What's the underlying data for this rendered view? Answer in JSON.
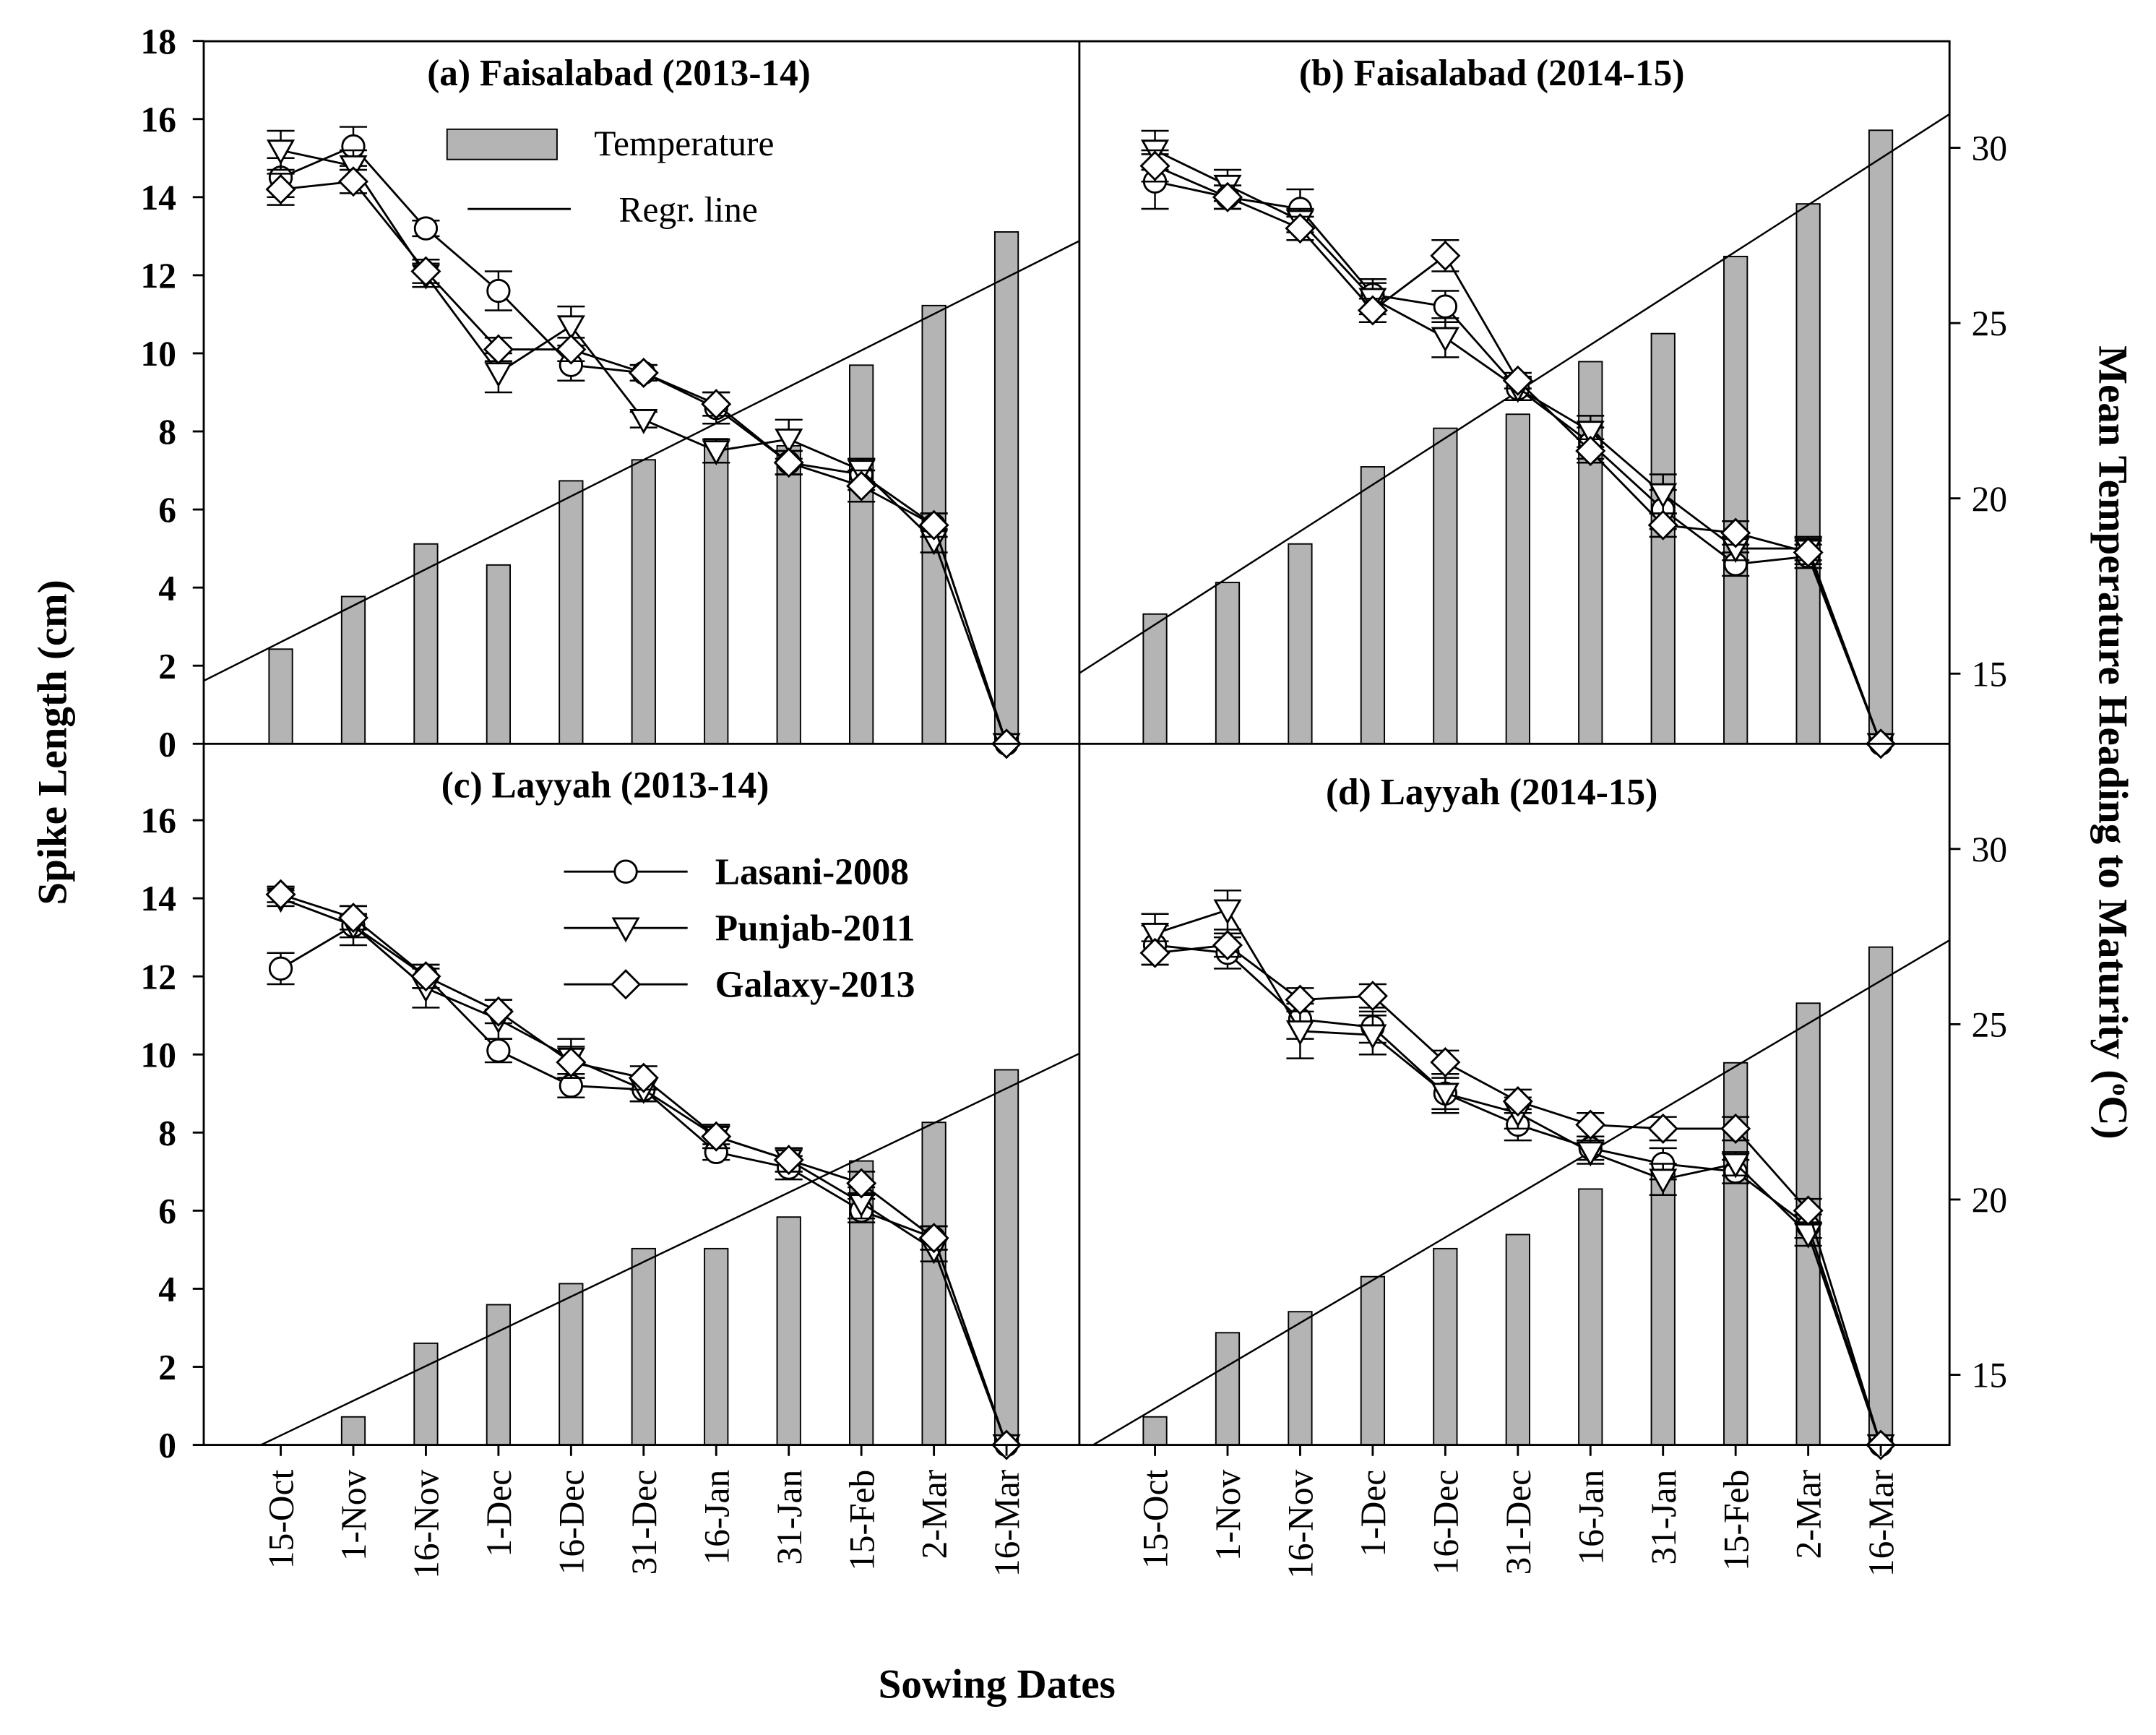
{
  "chart_data": {
    "type": "bar+line",
    "xlabel": "Sowing Dates",
    "ylabel": "Spike Length (cm)",
    "y2label": "Mean Temperature Heading to Maturity (",
    "y2label_unit": "C)",
    "y2label_sup": "o",
    "ylim": [
      0,
      18
    ],
    "y2lim": [
      13,
      33
    ],
    "categories": [
      "15-Oct",
      "1-Nov",
      "16-Nov",
      "1-Dec",
      "16-Dec",
      "31-Dec",
      "16-Jan",
      "31-Jan",
      "15-Feb",
      "2-Mar",
      "16-Mar"
    ],
    "legend": {
      "temperature": "Temperature",
      "regression": "Regr. line",
      "series": [
        "Lasani-2008",
        "Punjab-2011",
        "Galaxy-2013"
      ]
    },
    "panels": [
      {
        "title": "(a) Faisalabad (2013-14)",
        "temperature": [
          15.7,
          17.2,
          18.7,
          18.1,
          20.5,
          21.1,
          21.7,
          21.5,
          23.8,
          25.5,
          27.6
        ],
        "regression": {
          "intercept": 15.9,
          "slope": 1.04
        },
        "series": [
          {
            "name": "Lasani-2008",
            "values": [
              14.5,
              15.3,
              13.2,
              11.6,
              9.7,
              9.5,
              8.6,
              7.2,
              6.9,
              5.6,
              0
            ],
            "error": [
              0.5,
              0.5,
              0.2,
              0.5,
              0.4,
              0.2,
              0.4,
              0.3,
              0.4,
              0.3,
              0
            ]
          },
          {
            "name": "Punjab-2011",
            "values": [
              15.2,
              14.8,
              12.0,
              9.5,
              10.7,
              8.3,
              7.5,
              7.8,
              7.0,
              5.2,
              0
            ],
            "error": [
              0.5,
              0.4,
              0.3,
              0.5,
              0.5,
              0.2,
              0.3,
              0.5,
              0.3,
              0.3,
              0
            ]
          },
          {
            "name": "Galaxy-2013",
            "values": [
              14.2,
              14.4,
              12.1,
              10.1,
              10.1,
              9.5,
              8.7,
              7.2,
              6.6,
              5.6,
              0
            ],
            "error": [
              0.4,
              0.3,
              0.3,
              0.3,
              0.3,
              0.2,
              0.3,
              0.3,
              0.4,
              0.3,
              0
            ]
          }
        ]
      },
      {
        "title": "(b) Faisalabad (2014-15)",
        "temperature": [
          16.7,
          17.6,
          18.7,
          20.9,
          22.0,
          22.4,
          23.9,
          24.7,
          26.9,
          28.4,
          30.5
        ],
        "regression": {
          "intercept": 16.4,
          "slope": 1.33
        },
        "series": [
          {
            "name": "Lasani-2008",
            "values": [
              14.4,
              14.0,
              13.7,
              11.5,
              11.2,
              9.1,
              7.7,
              6.0,
              4.6,
              4.8,
              0
            ],
            "error": [
              0.7,
              0.3,
              0.5,
              0.4,
              0.4,
              0.3,
              0.4,
              0.5,
              0.3,
              0.3,
              0
            ]
          },
          {
            "name": "Punjab-2011",
            "values": [
              15.2,
              14.3,
              13.4,
              11.4,
              10.4,
              9.1,
              8.0,
              6.4,
              5.0,
              5.0,
              0
            ],
            "error": [
              0.5,
              0.4,
              0.3,
              0.4,
              0.5,
              0.3,
              0.4,
              0.5,
              0.3,
              0.3,
              0
            ]
          },
          {
            "name": "Galaxy-2013",
            "values": [
              14.8,
              14.0,
              13.2,
              11.1,
              12.5,
              9.3,
              7.5,
              5.6,
              5.4,
              4.9,
              0
            ],
            "error": [
              0.4,
              0.3,
              0.3,
              0.3,
              0.4,
              0.2,
              0.3,
              0.3,
              0.3,
              0.3,
              0
            ]
          }
        ]
      },
      {
        "title": "(c) Layyah (2013-14)",
        "temperature": [
          13.0,
          13.8,
          15.9,
          17.0,
          17.6,
          18.6,
          18.6,
          19.5,
          21.1,
          22.2,
          23.7
        ],
        "regression": {
          "intercept": 13.27,
          "slope": 0.99
        },
        "series": [
          {
            "name": "Lasani-2008",
            "values": [
              12.2,
              13.3,
              12.0,
              10.1,
              9.2,
              9.1,
              7.5,
              7.1,
              6.0,
              5.3,
              0
            ],
            "error": [
              0.4,
              0.3,
              0.3,
              0.3,
              0.3,
              0.3,
              0.2,
              0.3,
              0.3,
              0.3,
              0
            ]
          },
          {
            "name": "Punjab-2011",
            "values": [
              14.0,
              13.3,
              11.7,
              10.9,
              9.9,
              9.1,
              7.9,
              7.3,
              6.2,
              5.0,
              0
            ],
            "error": [
              0.2,
              0.5,
              0.5,
              0.5,
              0.5,
              0.3,
              0.3,
              0.3,
              0.4,
              0.3,
              0
            ]
          },
          {
            "name": "Galaxy-2013",
            "values": [
              14.1,
              13.5,
              12.0,
              11.1,
              9.8,
              9.4,
              7.9,
              7.3,
              6.7,
              5.3,
              0
            ],
            "error": [
              0.2,
              0.3,
              0.3,
              0.3,
              0.4,
              0.3,
              0.3,
              0.3,
              0.3,
              0.3,
              0
            ]
          }
        ]
      },
      {
        "title": "(d) Layyah (2014-15)",
        "temperature": [
          13.8,
          16.2,
          16.8,
          17.8,
          18.6,
          19.0,
          20.3,
          20.8,
          23.9,
          25.6,
          27.2
        ],
        "regression": {
          "intercept": 14.04,
          "slope": 1.22
        },
        "series": [
          {
            "name": "Lasani-2008",
            "values": [
              12.8,
              12.6,
              10.9,
              10.7,
              9.0,
              8.2,
              7.6,
              7.2,
              7.0,
              5.6,
              0
            ],
            "error": [
              0.5,
              0.4,
              0.5,
              0.4,
              0.4,
              0.4,
              0.3,
              0.4,
              0.3,
              0.3,
              0
            ]
          },
          {
            "name": "Punjab-2011",
            "values": [
              13.1,
              13.7,
              10.6,
              10.5,
              9.0,
              8.5,
              7.5,
              6.8,
              7.2,
              5.4,
              0
            ],
            "error": [
              0.5,
              0.5,
              0.7,
              0.5,
              0.5,
              0.4,
              0.3,
              0.4,
              0.3,
              0.3,
              0
            ]
          },
          {
            "name": "Galaxy-2013",
            "values": [
              12.6,
              12.8,
              11.4,
              11.5,
              9.8,
              8.8,
              8.2,
              8.1,
              8.1,
              6.0,
              0
            ],
            "error": [
              0.3,
              0.3,
              0.3,
              0.3,
              0.3,
              0.3,
              0.3,
              0.3,
              0.3,
              0.3,
              0
            ]
          }
        ]
      }
    ],
    "colors": {
      "bar": "#b4b4b4",
      "line": "#000000",
      "marker_fill": "#ffffff"
    }
  }
}
